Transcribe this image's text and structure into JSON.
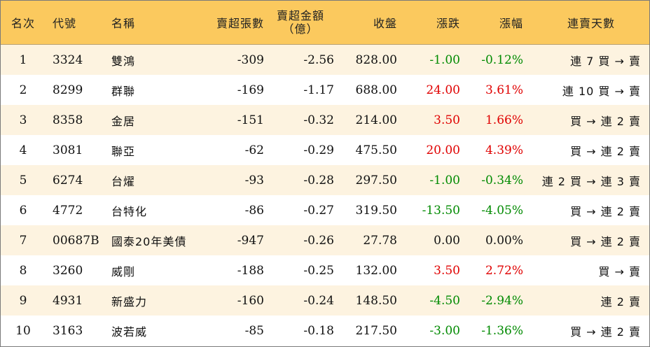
{
  "headers": {
    "rank": "名次",
    "code": "代號",
    "name": "名稱",
    "sell_lots": "賣超張數",
    "sell_amount_line1": "賣超金額",
    "sell_amount_line2": "（億）",
    "close": "收盤",
    "change": "漲跌",
    "change_pct": "漲幅",
    "streak": "連賣天數"
  },
  "colors": {
    "header_bg": "#fbc95e",
    "odd_row_bg": "#fdf3e0",
    "up": "#e00000",
    "down": "#008a00"
  },
  "rows": [
    {
      "rank": "1",
      "code": "3324",
      "name": "雙鴻",
      "sell_lots": "-309",
      "sell_amount": "-2.56",
      "close": "828.00",
      "change": "-1.00",
      "change_pct": "-0.12%",
      "streak": "連 7 買 → 賣",
      "dir": "down"
    },
    {
      "rank": "2",
      "code": "8299",
      "name": "群聯",
      "sell_lots": "-169",
      "sell_amount": "-1.17",
      "close": "688.00",
      "change": "24.00",
      "change_pct": "3.61%",
      "streak": "連 10 買 → 賣",
      "dir": "up"
    },
    {
      "rank": "3",
      "code": "8358",
      "name": "金居",
      "sell_lots": "-151",
      "sell_amount": "-0.32",
      "close": "214.00",
      "change": "3.50",
      "change_pct": "1.66%",
      "streak": "買 → 連 2 賣",
      "dir": "up"
    },
    {
      "rank": "4",
      "code": "3081",
      "name": "聯亞",
      "sell_lots": "-62",
      "sell_amount": "-0.29",
      "close": "475.50",
      "change": "20.00",
      "change_pct": "4.39%",
      "streak": "買 → 連 2 賣",
      "dir": "up"
    },
    {
      "rank": "5",
      "code": "6274",
      "name": "台燿",
      "sell_lots": "-93",
      "sell_amount": "-0.28",
      "close": "297.50",
      "change": "-1.00",
      "change_pct": "-0.34%",
      "streak": "連 2 買 → 連 3 賣",
      "dir": "down"
    },
    {
      "rank": "6",
      "code": "4772",
      "name": "台特化",
      "sell_lots": "-86",
      "sell_amount": "-0.27",
      "close": "319.50",
      "change": "-13.50",
      "change_pct": "-4.05%",
      "streak": "買 → 連 2 賣",
      "dir": "down"
    },
    {
      "rank": "7",
      "code": "00687B",
      "name": "國泰20年美債",
      "sell_lots": "-947",
      "sell_amount": "-0.26",
      "close": "27.78",
      "change": "0.00",
      "change_pct": "0.00%",
      "streak": "買 → 連 2 賣",
      "dir": "flat"
    },
    {
      "rank": "8",
      "code": "3260",
      "name": "威剛",
      "sell_lots": "-188",
      "sell_amount": "-0.25",
      "close": "132.00",
      "change": "3.50",
      "change_pct": "2.72%",
      "streak": "買 → 賣",
      "dir": "up"
    },
    {
      "rank": "9",
      "code": "4931",
      "name": "新盛力",
      "sell_lots": "-160",
      "sell_amount": "-0.24",
      "close": "148.50",
      "change": "-4.50",
      "change_pct": "-2.94%",
      "streak": "連 2 賣",
      "dir": "down"
    },
    {
      "rank": "10",
      "code": "3163",
      "name": "波若威",
      "sell_lots": "-85",
      "sell_amount": "-0.18",
      "close": "217.50",
      "change": "-3.00",
      "change_pct": "-1.36%",
      "streak": "買 → 連 2 賣",
      "dir": "down"
    }
  ]
}
